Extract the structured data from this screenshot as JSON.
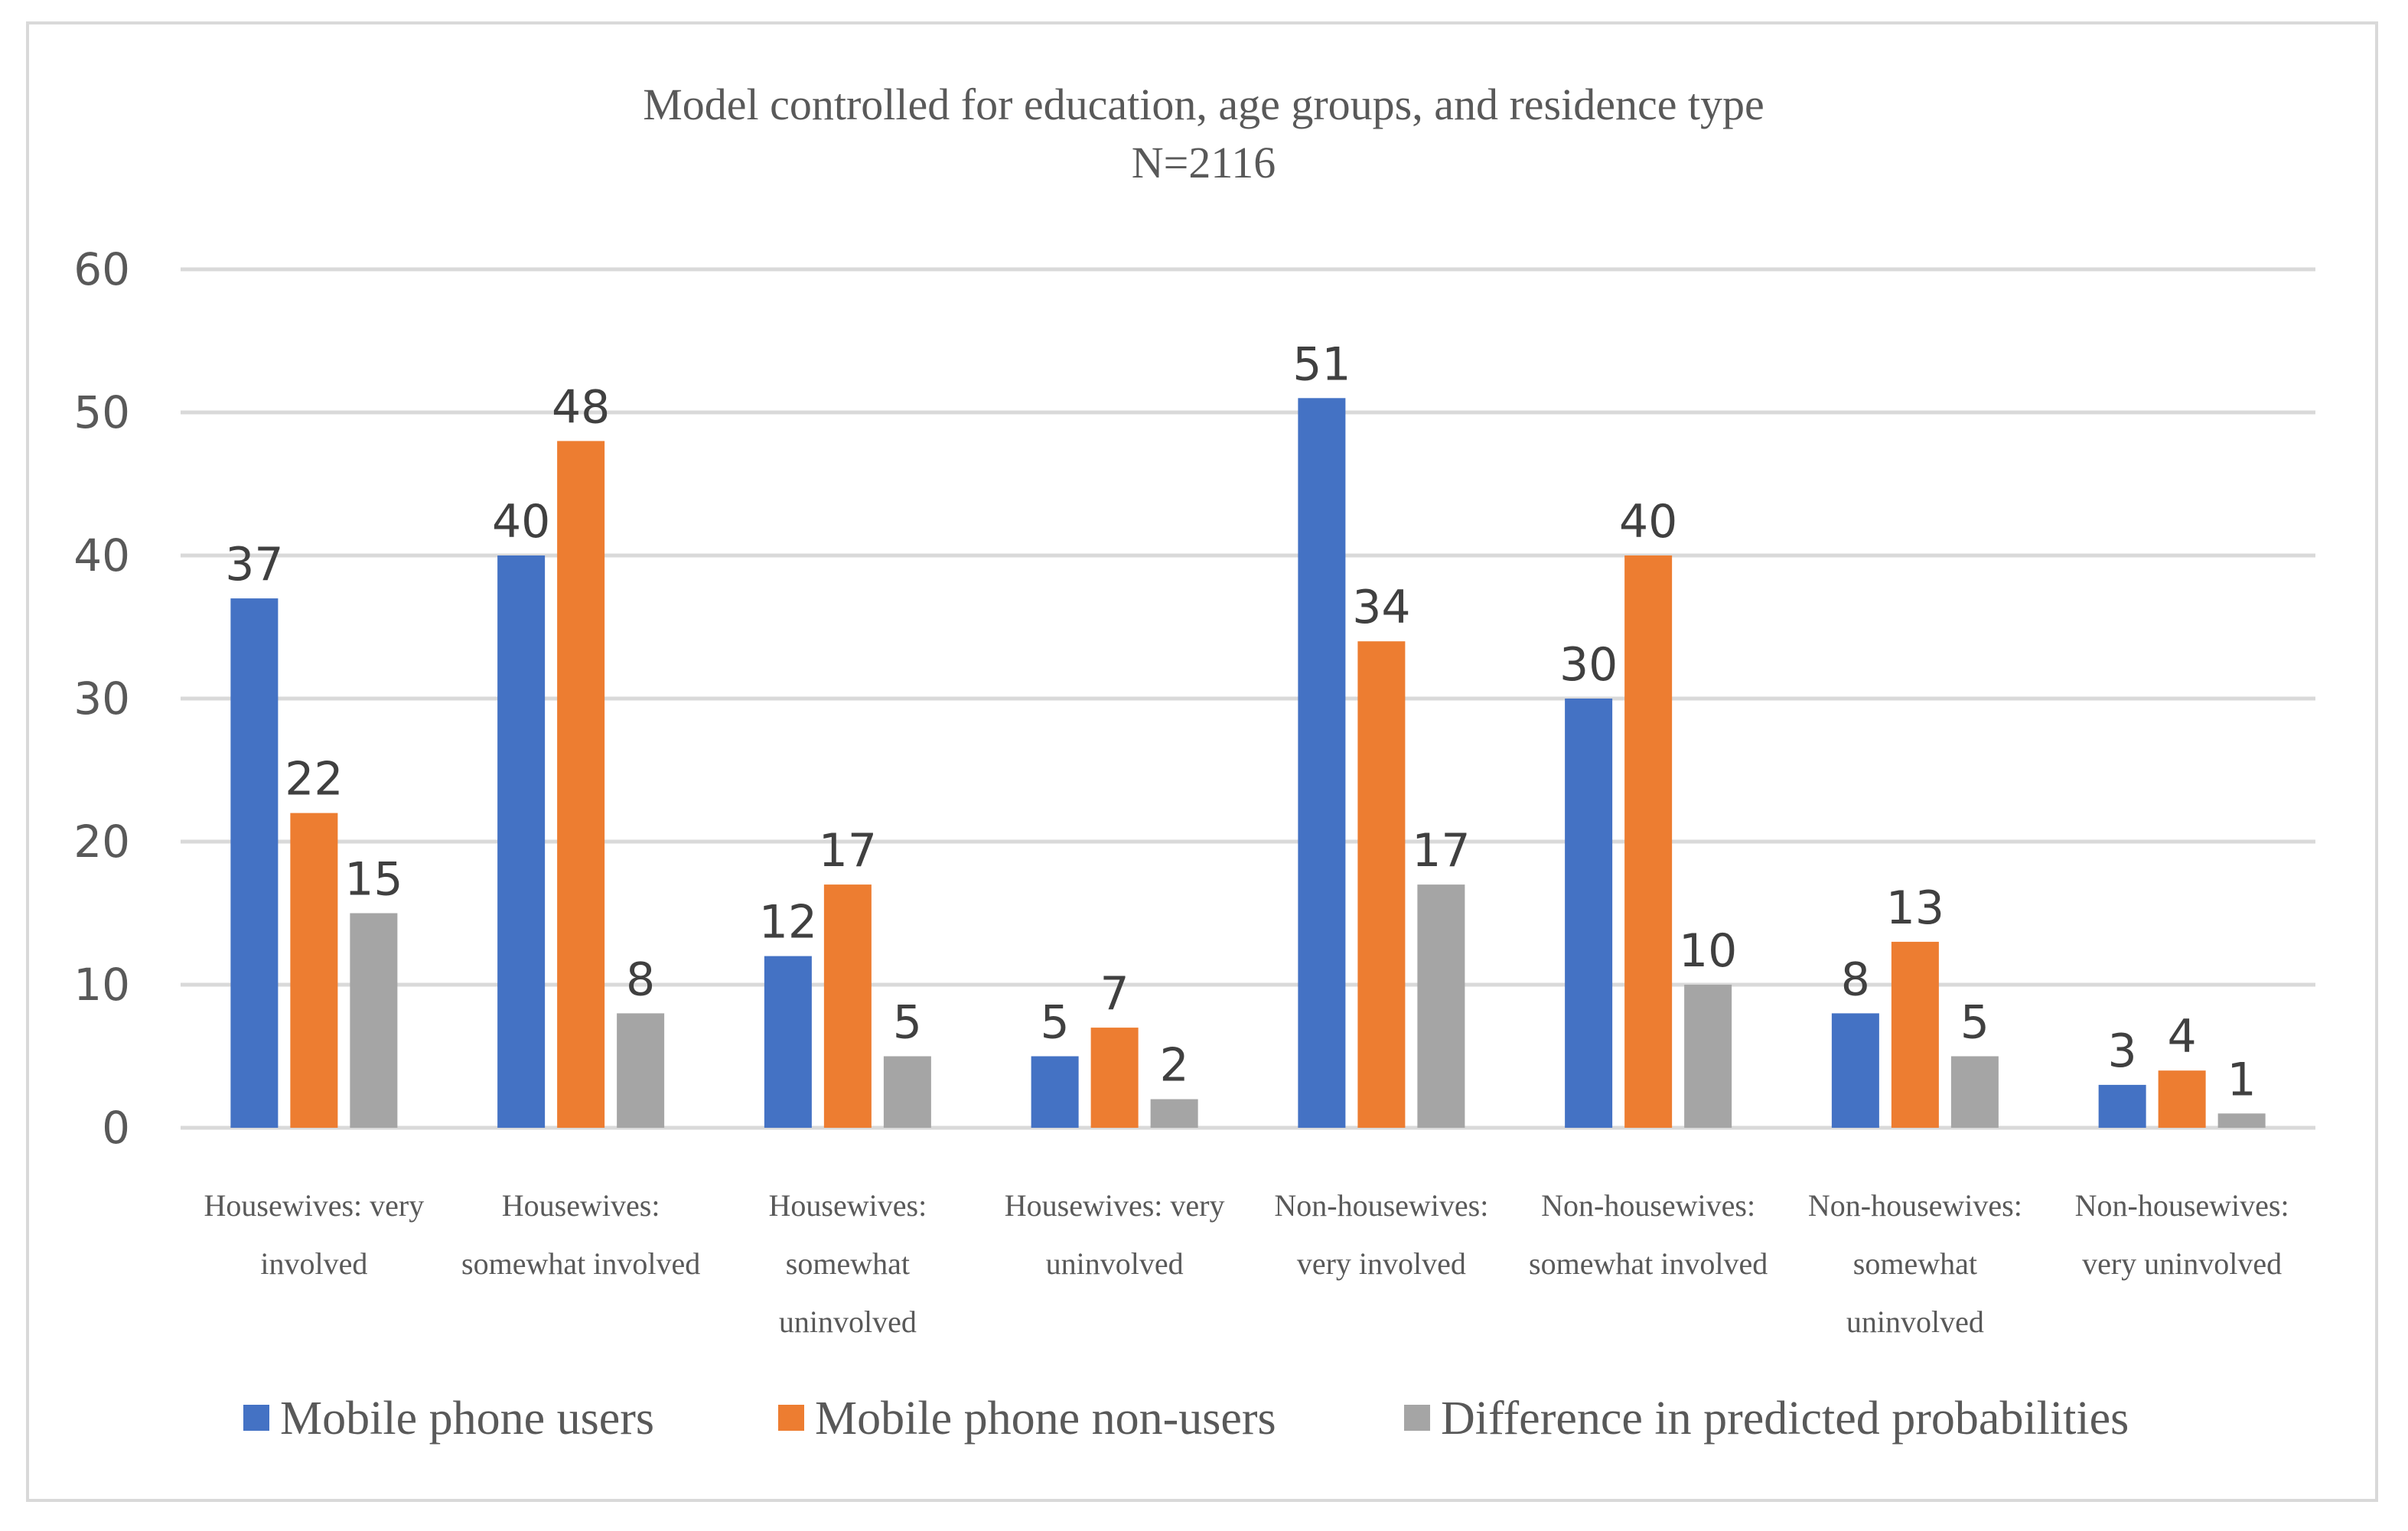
{
  "chart_data": {
    "type": "bar",
    "title": "Model controlled for education, age groups, and residence type",
    "subtitle": "N=2116",
    "xlabel": "",
    "ylabel": "",
    "ylim": [
      0,
      60
    ],
    "yticks": [
      0,
      10,
      20,
      30,
      40,
      50,
      60
    ],
    "grid": true,
    "legend_position": "bottom",
    "categories": [
      [
        "Housewives: very",
        "involved"
      ],
      [
        "Housewives:",
        "somewhat involved"
      ],
      [
        "Housewives:",
        "somewhat",
        "uninvolved"
      ],
      [
        "Housewives: very",
        "uninvolved"
      ],
      [
        "Non-housewives:",
        "very involved"
      ],
      [
        "Non-housewives:",
        "somewhat involved"
      ],
      [
        "Non-housewives:",
        "somewhat",
        "uninvolved"
      ],
      [
        "Non-housewives:",
        "very uninvolved"
      ]
    ],
    "series": [
      {
        "name": "Mobile phone users",
        "color": "#4472c4",
        "values": [
          37,
          40,
          12,
          5,
          51,
          30,
          8,
          3
        ]
      },
      {
        "name": "Mobile phone non-users",
        "color": "#ed7d31",
        "values": [
          22,
          48,
          17,
          7,
          34,
          40,
          13,
          4
        ]
      },
      {
        "name": "Difference in predicted probabilities",
        "color": "#a5a5a5",
        "values": [
          15,
          8,
          5,
          2,
          17,
          10,
          5,
          1
        ]
      }
    ]
  }
}
